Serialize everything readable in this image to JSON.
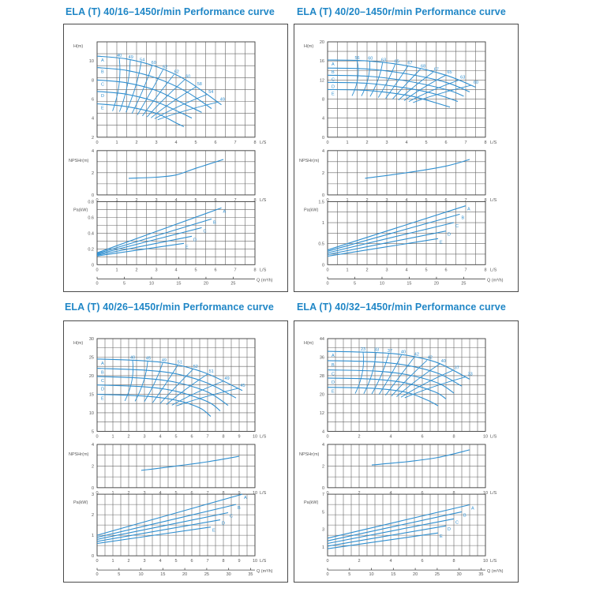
{
  "colors": {
    "curve": "#2f8fd0",
    "grid": "#666666",
    "text": "#555555",
    "title": "#1f86c6"
  },
  "chart_data": [
    {
      "type": "line",
      "title": "ELA (T) 40/16–1450r/min Performance curve",
      "flow_unit_label": "L/S",
      "q_axis_label": "Q (m³/h)",
      "q_ticks": [
        0,
        5,
        10,
        15,
        20,
        25
      ],
      "q_max": 29,
      "head": {
        "ylabel": "H(m)",
        "ylim": [
          2,
          12
        ],
        "yticks": [
          2,
          4,
          6,
          8,
          10
        ],
        "xlim": [
          0,
          8
        ],
        "xticks": [
          0,
          1,
          2,
          3,
          4,
          5,
          6,
          7,
          8
        ],
        "curves": [
          {
            "name": "A",
            "x": [
              0,
              1.5,
              3,
              4.5,
              6.3
            ],
            "y": [
              10.5,
              10.2,
              9.4,
              8.0,
              5.4
            ]
          },
          {
            "name": "B",
            "x": [
              0,
              1.5,
              3,
              4.5,
              5.8
            ],
            "y": [
              9.3,
              9.0,
              8.2,
              6.8,
              5.0
            ]
          },
          {
            "name": "C",
            "x": [
              0,
              1.5,
              3,
              4.5,
              5.3
            ],
            "y": [
              8.0,
              7.7,
              6.9,
              5.4,
              4.6
            ]
          },
          {
            "name": "D",
            "x": [
              0,
              1.5,
              3,
              4.2,
              4.8
            ],
            "y": [
              6.8,
              6.5,
              5.7,
              4.6,
              4.0
            ]
          },
          {
            "name": "E",
            "x": [
              0,
              1.5,
              3,
              4.0,
              4.4
            ],
            "y": [
              5.5,
              5.2,
              4.5,
              3.5,
              3.1
            ]
          }
        ],
        "efficiency_labels": [
          "40",
          "49",
          "54",
          "60",
          "62",
          "62",
          "60",
          "58",
          "54",
          "49"
        ]
      },
      "npsh": {
        "ylabel": "NPSHr(m)",
        "ylim": [
          0,
          4
        ],
        "yticks": [
          0,
          2,
          4
        ],
        "x": [
          1.6,
          3,
          4,
          5,
          6.4
        ],
        "y": [
          1.5,
          1.6,
          1.8,
          2.4,
          3.2
        ]
      },
      "power": {
        "ylabel": "Pa(kW)",
        "ylim": [
          0,
          0.8
        ],
        "yticks": [
          0,
          0.2,
          0.4,
          0.6,
          0.8
        ],
        "curves": [
          {
            "name": "A",
            "x": [
              0,
              6.3
            ],
            "y": [
              0.15,
              0.72
            ]
          },
          {
            "name": "B",
            "x": [
              0,
              5.8
            ],
            "y": [
              0.14,
              0.58
            ]
          },
          {
            "name": "C",
            "x": [
              0,
              5.3
            ],
            "y": [
              0.13,
              0.47
            ]
          },
          {
            "name": "D",
            "x": [
              0,
              4.8
            ],
            "y": [
              0.12,
              0.36
            ]
          },
          {
            "name": "E",
            "x": [
              0,
              4.4
            ],
            "y": [
              0.11,
              0.27
            ]
          }
        ]
      }
    },
    {
      "type": "line",
      "title": "ELA (T) 40/20–1450r/min Performance curve",
      "flow_unit_label": "L/S",
      "q_axis_label": "Q (m³/h)",
      "q_ticks": [
        0,
        5,
        10,
        15,
        20,
        25
      ],
      "q_max": 29,
      "head": {
        "ylabel": "H(m)",
        "ylim": [
          0,
          20
        ],
        "yticks": [
          0,
          4,
          8,
          12,
          16,
          20
        ],
        "xlim": [
          0,
          8
        ],
        "xticks": [
          0,
          1,
          2,
          3,
          4,
          5,
          6,
          7,
          8
        ],
        "curves": [
          {
            "name": "A",
            "x": [
              0,
              2,
              4,
              6,
              7.5
            ],
            "y": [
              16.2,
              16.0,
              15.0,
              13.0,
              10.5
            ]
          },
          {
            "name": "B",
            "x": [
              0,
              2,
              4,
              6,
              7.2
            ],
            "y": [
              14.5,
              14.3,
              13.3,
              11.5,
              9.5
            ]
          },
          {
            "name": "C",
            "x": [
              0,
              2,
              4,
              6,
              6.9
            ],
            "y": [
              13.0,
              12.8,
              11.8,
              10.0,
              8.6
            ]
          },
          {
            "name": "D",
            "x": [
              0,
              2,
              4,
              5.5,
              6.6
            ],
            "y": [
              11.5,
              11.3,
              10.3,
              9.0,
              7.5
            ]
          },
          {
            "name": "E",
            "x": [
              0,
              2,
              4,
              5,
              6.2
            ],
            "y": [
              10.0,
              9.8,
              8.8,
              7.8,
              6.3
            ]
          }
        ],
        "efficiency_labels": [
          "56",
          "60",
          "63",
          "65",
          "67",
          "68",
          "67",
          "65",
          "63",
          "60"
        ]
      },
      "npsh": {
        "ylabel": "NPSHr(m)",
        "ylim": [
          0,
          4
        ],
        "yticks": [
          0,
          2,
          4
        ],
        "x": [
          1.9,
          4,
          6,
          7.2
        ],
        "y": [
          1.5,
          2.0,
          2.6,
          3.2
        ]
      },
      "power": {
        "ylabel": "Pa(kW)",
        "ylim": [
          0,
          1.5
        ],
        "yticks": [
          0,
          0.5,
          1.0,
          1.5
        ],
        "curves": [
          {
            "name": "A",
            "x": [
              0,
              7.0
            ],
            "y": [
              0.35,
              1.4
            ]
          },
          {
            "name": "B",
            "x": [
              0,
              6.7
            ],
            "y": [
              0.32,
              1.2
            ]
          },
          {
            "name": "C",
            "x": [
              0,
              6.4
            ],
            "y": [
              0.28,
              1.0
            ]
          },
          {
            "name": "D",
            "x": [
              0,
              6.0
            ],
            "y": [
              0.24,
              0.8
            ]
          },
          {
            "name": "E",
            "x": [
              0,
              5.6
            ],
            "y": [
              0.2,
              0.62
            ]
          }
        ]
      }
    },
    {
      "type": "line",
      "title": "ELA (T) 40/26–1450r/min Performance curve",
      "flow_unit_label": "L/S",
      "q_axis_label": "Q (m³/h)",
      "q_ticks": [
        0,
        5,
        10,
        15,
        20,
        25,
        30,
        35
      ],
      "q_max": 36,
      "head": {
        "ylabel": "H(m)",
        "ylim": [
          5,
          30
        ],
        "yticks": [
          5,
          10,
          15,
          20,
          25,
          30
        ],
        "xlim": [
          0,
          10
        ],
        "xticks": [
          0,
          1,
          2,
          3,
          4,
          5,
          6,
          7,
          8,
          9,
          10
        ],
        "curves": [
          {
            "name": "A",
            "x": [
              0,
              3,
              5,
              7,
              9.2
            ],
            "y": [
              24.5,
              24.0,
              23.0,
              20.5,
              16.0
            ]
          },
          {
            "name": "B",
            "x": [
              0,
              3,
              5,
              7,
              8.8
            ],
            "y": [
              22.0,
              21.5,
              20.5,
              18.0,
              14.0
            ]
          },
          {
            "name": "C",
            "x": [
              0,
              3,
              5,
              7,
              8.3
            ],
            "y": [
              19.8,
              19.3,
              18.2,
              15.6,
              12.0
            ]
          },
          {
            "name": "D",
            "x": [
              0,
              3,
              5,
              7,
              7.8
            ],
            "y": [
              17.5,
              17.0,
              15.8,
              13.0,
              10.5
            ]
          },
          {
            "name": "E",
            "x": [
              0,
              3,
              5,
              6.5,
              7.2
            ],
            "y": [
              15.0,
              14.5,
              13.4,
              11.3,
              9.0
            ]
          }
        ],
        "efficiency_labels": [
          "40",
          "45",
          "49",
          "51",
          "52",
          "51",
          "49",
          "45"
        ]
      },
      "npsh": {
        "ylabel": "NPSHr(m)",
        "ylim": [
          0,
          4
        ],
        "yticks": [
          0,
          2,
          4
        ],
        "x": [
          2.8,
          5,
          7,
          9
        ],
        "y": [
          1.6,
          2.0,
          2.4,
          2.9
        ]
      },
      "power": {
        "ylabel": "Pa(kW)",
        "ylim": [
          0,
          3
        ],
        "yticks": [
          0,
          1,
          2,
          3
        ],
        "curves": [
          {
            "name": "A",
            "x": [
              0,
              9.2
            ],
            "y": [
              1.0,
              3.0
            ]
          },
          {
            "name": "B",
            "x": [
              0,
              8.8
            ],
            "y": [
              0.9,
              2.5
            ]
          },
          {
            "name": "C",
            "x": [
              0,
              8.3
            ],
            "y": [
              0.8,
              2.1
            ]
          },
          {
            "name": "D",
            "x": [
              0,
              7.8
            ],
            "y": [
              0.7,
              1.75
            ]
          },
          {
            "name": "E",
            "x": [
              0,
              7.2
            ],
            "y": [
              0.6,
              1.4
            ]
          }
        ]
      }
    },
    {
      "type": "line",
      "title": "ELA (T) 40/32–1450r/min Performance curve",
      "flow_unit_label": "L/S",
      "q_axis_label": "Q (m³/h)",
      "q_ticks": [
        0,
        5,
        10,
        15,
        20,
        25,
        30,
        35
      ],
      "q_max": 36,
      "head": {
        "ylabel": "H(m)",
        "ylim": [
          4,
          44
        ],
        "yticks": [
          4,
          12,
          20,
          28,
          36,
          44
        ],
        "xlim": [
          0,
          10
        ],
        "xticks": [
          0,
          2,
          4,
          6,
          8,
          10
        ],
        "curves": [
          {
            "name": "A",
            "x": [
              0,
              3,
              5,
              7,
              9
            ],
            "y": [
              38.5,
              38.0,
              36.8,
              33.5,
              26.5
            ]
          },
          {
            "name": "B",
            "x": [
              0,
              3,
              5,
              7,
              8.5
            ],
            "y": [
              34.5,
              34.0,
              32.5,
              29.0,
              23.5
            ]
          },
          {
            "name": "C",
            "x": [
              0,
              3,
              5,
              7,
              8.0
            ],
            "y": [
              30.5,
              30.0,
              28.5,
              24.8,
              20.5
            ]
          },
          {
            "name": "D",
            "x": [
              0,
              3,
              5,
              6.8,
              7.5
            ],
            "y": [
              27.0,
              26.5,
              24.8,
              21.0,
              18.0
            ]
          },
          {
            "name": "E",
            "x": [
              0,
              3,
              5,
              6.3,
              7.0
            ],
            "y": [
              23.0,
              22.5,
              20.8,
              17.5,
              15.0
            ]
          }
        ],
        "efficiency_labels": [
          "23",
          "33",
          "37",
          "40",
          "42",
          "42",
          "40",
          "37",
          "33"
        ]
      },
      "npsh": {
        "ylabel": "NPSHr(m)",
        "ylim": [
          0,
          4
        ],
        "yticks": [
          0,
          2,
          4
        ],
        "x": [
          2.8,
          5,
          7,
          9
        ],
        "y": [
          2.1,
          2.4,
          2.8,
          3.5
        ]
      },
      "power": {
        "ylabel": "Pa(kW)",
        "ylim": [
          0,
          7
        ],
        "yticks": [
          1,
          3,
          5,
          7
        ],
        "curves": [
          {
            "name": "A",
            "x": [
              0,
              9
            ],
            "y": [
              2.0,
              5.8
            ]
          },
          {
            "name": "B",
            "x": [
              0,
              8.5
            ],
            "y": [
              1.7,
              5.0
            ]
          },
          {
            "name": "C",
            "x": [
              0,
              8.0
            ],
            "y": [
              1.4,
              4.2
            ]
          },
          {
            "name": "D",
            "x": [
              0,
              7.5
            ],
            "y": [
              1.1,
              3.4
            ]
          },
          {
            "name": "E",
            "x": [
              0,
              7.0
            ],
            "y": [
              0.8,
              2.6
            ]
          }
        ]
      }
    }
  ]
}
